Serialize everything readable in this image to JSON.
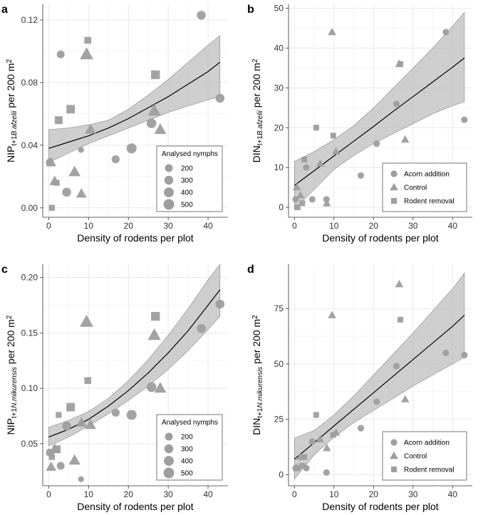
{
  "colors": {
    "point": "#9e9e9e",
    "band": "#bdbdbd",
    "line": "#000000",
    "grid": "#e8e8e8",
    "axis": "#333333"
  },
  "chart_data": [
    {
      "panel_label": "a",
      "type": "scatter",
      "title": "",
      "xlabel": "Density of rodents per plot",
      "ylabel": {
        "main": "NIP",
        "sub": "t+1",
        "sub_italic": "B.afzelii",
        "rest": " per 200 m",
        "sup": "2"
      },
      "xlim": [
        -1.5,
        45
      ],
      "ylim": [
        -0.006,
        0.13
      ],
      "xticks": [
        "0",
        "10",
        "20",
        "30",
        "40"
      ],
      "xtick_values": [
        0,
        10,
        20,
        30,
        40
      ],
      "yticks": [
        "0.00",
        "0.04",
        "0.08",
        "0.12"
      ],
      "ytick_values": [
        0,
        0.04,
        0.08,
        0.12
      ],
      "grid": true,
      "legend": {
        "title": "Analysed nymphs",
        "position": "bottom-right",
        "type": "size",
        "entries": [
          {
            "label": "200",
            "size": 200
          },
          {
            "label": "300",
            "size": 300
          },
          {
            "label": "400",
            "size": 400
          },
          {
            "label": "500",
            "size": 500
          }
        ]
      },
      "fit": {
        "x": [
          0,
          5,
          10,
          15,
          20,
          25,
          30,
          35,
          40,
          43
        ],
        "y": [
          0.038,
          0.042,
          0.046,
          0.051,
          0.057,
          0.064,
          0.071,
          0.079,
          0.087,
          0.093
        ],
        "lower": [
          0.029,
          0.035,
          0.041,
          0.046,
          0.051,
          0.056,
          0.061,
          0.065,
          0.069,
          0.071
        ],
        "upper": [
          0.05,
          0.051,
          0.053,
          0.056,
          0.063,
          0.072,
          0.082,
          0.093,
          0.104,
          0.11
        ]
      },
      "points": [
        {
          "x": 38.3,
          "y": 0.123,
          "shape": "circle",
          "size": 300
        },
        {
          "x": 43.0,
          "y": 0.07,
          "shape": "circle",
          "size": 300
        },
        {
          "x": 3.0,
          "y": 0.098,
          "shape": "circle",
          "size": 200
        },
        {
          "x": 9.8,
          "y": 0.107,
          "shape": "square",
          "size": 200
        },
        {
          "x": 9.5,
          "y": 0.098,
          "shape": "triangle",
          "size": 500
        },
        {
          "x": 26.8,
          "y": 0.085,
          "shape": "square",
          "size": 420
        },
        {
          "x": 5.5,
          "y": 0.063,
          "shape": "square",
          "size": 380
        },
        {
          "x": 2.5,
          "y": 0.056,
          "shape": "square",
          "size": 300
        },
        {
          "x": 26.5,
          "y": 0.062,
          "shape": "triangle",
          "size": 460
        },
        {
          "x": 10.5,
          "y": 0.05,
          "shape": "triangle",
          "size": 300
        },
        {
          "x": 25.8,
          "y": 0.054,
          "shape": "circle",
          "size": 380
        },
        {
          "x": 28.0,
          "y": 0.05,
          "shape": "triangle",
          "size": 360
        },
        {
          "x": 20.8,
          "y": 0.038,
          "shape": "circle",
          "size": 420
        },
        {
          "x": 16.8,
          "y": 0.031,
          "shape": "circle",
          "size": 220
        },
        {
          "x": 8.1,
          "y": 0.037,
          "shape": "circle",
          "size": 80
        },
        {
          "x": 0.3,
          "y": 0.029,
          "shape": "circle",
          "size": 220
        },
        {
          "x": 0.6,
          "y": 0.029,
          "shape": "triangle",
          "size": 240
        },
        {
          "x": 1.5,
          "y": 0.017,
          "shape": "triangle",
          "size": 260
        },
        {
          "x": 2.0,
          "y": 0.016,
          "shape": "square",
          "size": 120
        },
        {
          "x": 6.5,
          "y": 0.023,
          "shape": "triangle",
          "size": 340
        },
        {
          "x": 4.5,
          "y": 0.01,
          "shape": "circle",
          "size": 300
        },
        {
          "x": 8.2,
          "y": 0.009,
          "shape": "triangle",
          "size": 260
        },
        {
          "x": 0.8,
          "y": 0.0,
          "shape": "square",
          "size": 130
        }
      ]
    },
    {
      "panel_label": "b",
      "type": "scatter",
      "title": "",
      "xlabel": "Density of rodents per plot",
      "ylabel": {
        "main": "DIN",
        "sub": "t+1",
        "sub_italic": "B.afzelii",
        "rest": " per 200 m",
        "sup": "2"
      },
      "xlim": [
        -1.5,
        45
      ],
      "ylim": [
        -2.5,
        51
      ],
      "xticks": [
        "0",
        "10",
        "20",
        "30",
        "40"
      ],
      "xtick_values": [
        0,
        10,
        20,
        30,
        40
      ],
      "yticks": [
        "0",
        "10",
        "20",
        "30",
        "40",
        "50"
      ],
      "ytick_values": [
        0,
        10,
        20,
        30,
        40,
        50
      ],
      "grid": true,
      "legend": {
        "title": "",
        "position": "bottom-right",
        "type": "shape",
        "entries": [
          {
            "label": "Acorn addition",
            "shape": "circle"
          },
          {
            "label": "Control",
            "shape": "triangle"
          },
          {
            "label": "Rodent removal",
            "shape": "square"
          }
        ]
      },
      "fit": {
        "x": [
          0,
          5,
          10,
          15,
          20,
          25,
          30,
          35,
          40,
          43
        ],
        "y": [
          5.5,
          9.2,
          12.9,
          16.6,
          20.3,
          24.1,
          27.8,
          31.5,
          35.2,
          37.5
        ],
        "lower": [
          -0.5,
          4.5,
          9.5,
          13.0,
          16.0,
          18.5,
          21.0,
          23.5,
          25.5,
          26.5
        ],
        "upper": [
          11.5,
          14.0,
          17.0,
          20.5,
          25.0,
          30.0,
          35.0,
          40.0,
          45.5,
          49.0
        ]
      },
      "points": [
        {
          "x": 38.3,
          "y": 44,
          "shape": "circle"
        },
        {
          "x": 43.0,
          "y": 22,
          "shape": "circle"
        },
        {
          "x": 25.8,
          "y": 26,
          "shape": "circle"
        },
        {
          "x": 20.8,
          "y": 16,
          "shape": "circle"
        },
        {
          "x": 16.8,
          "y": 8,
          "shape": "circle"
        },
        {
          "x": 3.0,
          "y": 10,
          "shape": "circle"
        },
        {
          "x": 8.1,
          "y": 2,
          "shape": "circle"
        },
        {
          "x": 4.5,
          "y": 2,
          "shape": "circle"
        },
        {
          "x": 0.3,
          "y": 2,
          "shape": "circle"
        },
        {
          "x": 9.5,
          "y": 44,
          "shape": "triangle"
        },
        {
          "x": 26.5,
          "y": 36,
          "shape": "triangle"
        },
        {
          "x": 28.0,
          "y": 17,
          "shape": "triangle"
        },
        {
          "x": 10.5,
          "y": 14,
          "shape": "triangle"
        },
        {
          "x": 6.5,
          "y": 11,
          "shape": "triangle"
        },
        {
          "x": 0.6,
          "y": 5,
          "shape": "triangle"
        },
        {
          "x": 1.5,
          "y": 3,
          "shape": "triangle"
        },
        {
          "x": 8.2,
          "y": 1,
          "shape": "triangle"
        },
        {
          "x": 26.8,
          "y": 36,
          "shape": "square"
        },
        {
          "x": 9.8,
          "y": 18,
          "shape": "square"
        },
        {
          "x": 5.5,
          "y": 20,
          "shape": "square"
        },
        {
          "x": 2.5,
          "y": 12,
          "shape": "square"
        },
        {
          "x": 2.0,
          "y": 1,
          "shape": "square"
        },
        {
          "x": 0.8,
          "y": 0,
          "shape": "square"
        }
      ]
    },
    {
      "panel_label": "c",
      "type": "scatter",
      "title": "",
      "xlabel": "Density of rodents per plot",
      "ylabel": {
        "main": "NIP",
        "sub": "t+1",
        "sub_italic": "N.mikurensis",
        "rest": " per 200 m",
        "sup": "2"
      },
      "xlim": [
        -1.5,
        45
      ],
      "ylim": [
        0.012,
        0.212
      ],
      "xticks": [
        "0",
        "10",
        "20",
        "30",
        "40"
      ],
      "xtick_values": [
        0,
        10,
        20,
        30,
        40
      ],
      "yticks": [
        "0.05",
        "0.10",
        "0.15",
        "0.20"
      ],
      "ytick_values": [
        0.05,
        0.1,
        0.15,
        0.2
      ],
      "grid": true,
      "legend": {
        "title": "Analysed nymphs",
        "position": "bottom-right",
        "type": "size",
        "entries": [
          {
            "label": "200",
            "size": 200
          },
          {
            "label": "300",
            "size": 300
          },
          {
            "label": "400",
            "size": 400
          },
          {
            "label": "500",
            "size": 500
          }
        ]
      },
      "fit": {
        "x": [
          0,
          5,
          10,
          15,
          20,
          25,
          30,
          35,
          40,
          43
        ],
        "y": [
          0.056,
          0.063,
          0.072,
          0.084,
          0.098,
          0.114,
          0.132,
          0.152,
          0.175,
          0.189
        ],
        "lower": [
          0.048,
          0.056,
          0.066,
          0.077,
          0.089,
          0.102,
          0.117,
          0.134,
          0.153,
          0.165
        ],
        "upper": [
          0.065,
          0.071,
          0.079,
          0.091,
          0.107,
          0.126,
          0.148,
          0.172,
          0.198,
          0.212
        ]
      },
      "points": [
        {
          "x": 43.0,
          "y": 0.176,
          "shape": "circle",
          "size": 300
        },
        {
          "x": 38.3,
          "y": 0.154,
          "shape": "circle",
          "size": 300
        },
        {
          "x": 25.8,
          "y": 0.101,
          "shape": "circle",
          "size": 380
        },
        {
          "x": 20.8,
          "y": 0.076,
          "shape": "circle",
          "size": 420
        },
        {
          "x": 16.8,
          "y": 0.078,
          "shape": "circle",
          "size": 220
        },
        {
          "x": 4.5,
          "y": 0.066,
          "shape": "circle",
          "size": 300
        },
        {
          "x": 3.0,
          "y": 0.03,
          "shape": "circle",
          "size": 200
        },
        {
          "x": 8.1,
          "y": 0.018,
          "shape": "circle",
          "size": 80
        },
        {
          "x": 0.3,
          "y": 0.042,
          "shape": "circle",
          "size": 220
        },
        {
          "x": 9.5,
          "y": 0.16,
          "shape": "triangle",
          "size": 500
        },
        {
          "x": 26.5,
          "y": 0.148,
          "shape": "triangle",
          "size": 460
        },
        {
          "x": 28.0,
          "y": 0.1,
          "shape": "triangle",
          "size": 360
        },
        {
          "x": 10.5,
          "y": 0.067,
          "shape": "triangle",
          "size": 300
        },
        {
          "x": 8.2,
          "y": 0.069,
          "shape": "triangle",
          "size": 260
        },
        {
          "x": 6.5,
          "y": 0.035,
          "shape": "triangle",
          "size": 340
        },
        {
          "x": 1.5,
          "y": 0.045,
          "shape": "triangle",
          "size": 260
        },
        {
          "x": 0.6,
          "y": 0.029,
          "shape": "triangle",
          "size": 240
        },
        {
          "x": 26.8,
          "y": 0.165,
          "shape": "square",
          "size": 420
        },
        {
          "x": 9.8,
          "y": 0.107,
          "shape": "square",
          "size": 200
        },
        {
          "x": 5.5,
          "y": 0.083,
          "shape": "square",
          "size": 380
        },
        {
          "x": 2.5,
          "y": 0.076,
          "shape": "square",
          "size": 120
        },
        {
          "x": 2.0,
          "y": 0.045,
          "shape": "square",
          "size": 300
        },
        {
          "x": 0.8,
          "y": 0.038,
          "shape": "square",
          "size": 130
        }
      ]
    },
    {
      "panel_label": "d",
      "type": "scatter",
      "title": "",
      "xlabel": "Density of rodents per plot",
      "ylabel": {
        "main": "DIN",
        "sub": "t+1",
        "sub_italic": "N.mikurensis",
        "rest": " per 200 m",
        "sup": "2"
      },
      "xlim": [
        -1.5,
        45
      ],
      "ylim": [
        -5,
        95
      ],
      "xticks": [
        "0",
        "10",
        "20",
        "30",
        "40"
      ],
      "xtick_values": [
        0,
        10,
        20,
        30,
        40
      ],
      "yticks": [
        "0",
        "25",
        "50",
        "75"
      ],
      "ytick_values": [
        0,
        25,
        50,
        75
      ],
      "grid": true,
      "legend": {
        "title": "",
        "position": "bottom-right",
        "type": "shape",
        "entries": [
          {
            "label": "Acorn addition",
            "shape": "circle"
          },
          {
            "label": "Control",
            "shape": "triangle"
          },
          {
            "label": "Rodent removal",
            "shape": "square"
          }
        ]
      },
      "fit": {
        "x": [
          0,
          5,
          10,
          15,
          20,
          25,
          30,
          35,
          40,
          43
        ],
        "y": [
          7,
          14.5,
          22,
          29.5,
          37,
          44.5,
          52,
          59.5,
          67,
          72
        ],
        "lower": [
          -2,
          9,
          17,
          23.5,
          29,
          34.5,
          40,
          45,
          50,
          53
        ],
        "upper": [
          16.5,
          20,
          27,
          35.5,
          45,
          54.5,
          64,
          74,
          84,
          91
        ]
      },
      "points": [
        {
          "x": 38.3,
          "y": 55,
          "shape": "circle"
        },
        {
          "x": 43.0,
          "y": 54,
          "shape": "circle"
        },
        {
          "x": 25.8,
          "y": 49,
          "shape": "circle"
        },
        {
          "x": 20.8,
          "y": 33,
          "shape": "circle"
        },
        {
          "x": 16.8,
          "y": 21,
          "shape": "circle"
        },
        {
          "x": 4.5,
          "y": 15,
          "shape": "circle"
        },
        {
          "x": 3.0,
          "y": 3,
          "shape": "circle"
        },
        {
          "x": 8.1,
          "y": 1,
          "shape": "circle"
        },
        {
          "x": 0.3,
          "y": 3,
          "shape": "circle"
        },
        {
          "x": 26.5,
          "y": 86,
          "shape": "triangle"
        },
        {
          "x": 9.5,
          "y": 72,
          "shape": "triangle"
        },
        {
          "x": 28.0,
          "y": 34,
          "shape": "triangle"
        },
        {
          "x": 10.5,
          "y": 19,
          "shape": "triangle"
        },
        {
          "x": 6.5,
          "y": 16,
          "shape": "triangle"
        },
        {
          "x": 8.2,
          "y": 12,
          "shape": "triangle"
        },
        {
          "x": 1.5,
          "y": 8,
          "shape": "triangle"
        },
        {
          "x": 0.6,
          "y": 3,
          "shape": "triangle"
        },
        {
          "x": 26.8,
          "y": 70,
          "shape": "square"
        },
        {
          "x": 5.5,
          "y": 27,
          "shape": "square"
        },
        {
          "x": 9.8,
          "y": 18,
          "shape": "square"
        },
        {
          "x": 2.5,
          "y": 8,
          "shape": "square"
        },
        {
          "x": 2.0,
          "y": 4,
          "shape": "square"
        },
        {
          "x": 0.8,
          "y": 3,
          "shape": "square"
        }
      ]
    }
  ]
}
